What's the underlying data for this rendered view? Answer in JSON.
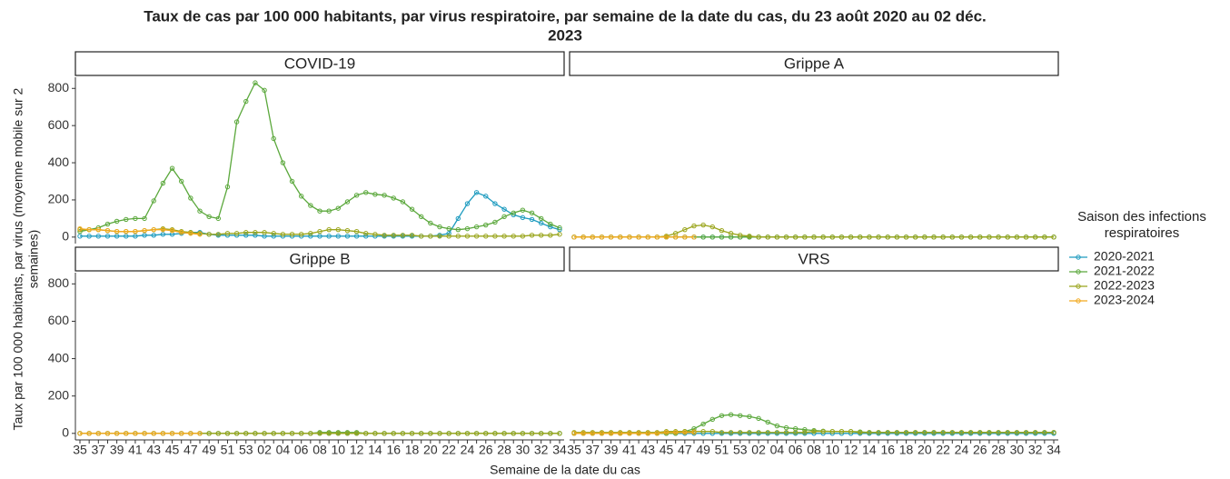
{
  "title": [
    "Taux de cas par 100 000 habitants, par virus respiratoire, par semaine de la date du cas, du 23 août 2020 au 02 déc.",
    "2023"
  ],
  "x_label": "Semaine de la date du cas",
  "y_label": [
    "Taux par 100 000 habitants, par virus (moyenne mobile sur 2",
    "semaines)"
  ],
  "legend_title": [
    "Saison des infections",
    "respiratoires"
  ],
  "chart_data": [
    {
      "type": "line",
      "title": "COVID-19",
      "categories": [
        "35",
        null,
        "37",
        null,
        "39",
        null,
        "41",
        null,
        "43",
        null,
        "45",
        null,
        "47",
        null,
        "49",
        null,
        "51",
        null,
        "53",
        null,
        "02",
        null,
        "04",
        null,
        "06",
        null,
        "08",
        null,
        "10",
        null,
        "12",
        null,
        "14",
        null,
        "16",
        null,
        "18",
        null,
        "20",
        null,
        "22",
        null,
        "24",
        null,
        "26",
        null,
        "28",
        null,
        "30",
        null,
        "32",
        null,
        "34"
      ],
      "ylim": [
        -35,
        860
      ],
      "yticks": [
        0,
        200,
        400,
        600,
        800
      ],
      "series": [
        {
          "name": "2020-2021",
          "color": "#1d9bbf",
          "values": [
            5,
            5,
            5,
            5,
            5,
            5,
            5,
            10,
            10,
            15,
            15,
            20,
            25,
            25,
            15,
            10,
            10,
            10,
            10,
            10,
            5,
            5,
            5,
            5,
            5,
            5,
            5,
            5,
            5,
            5,
            5,
            5,
            5,
            5,
            5,
            5,
            5,
            5,
            5,
            10,
            20,
            100,
            180,
            240,
            220,
            180,
            150,
            120,
            105,
            95,
            75,
            55,
            40
          ]
        },
        {
          "name": "2021-2022",
          "color": "#5ba83c",
          "values": [
            30,
            40,
            50,
            70,
            85,
            95,
            100,
            100,
            195,
            290,
            370,
            300,
            210,
            140,
            110,
            100,
            270,
            620,
            730,
            830,
            790,
            530,
            400,
            300,
            220,
            170,
            140,
            140,
            155,
            190,
            225,
            240,
            230,
            225,
            210,
            190,
            150,
            110,
            75,
            55,
            45,
            40,
            45,
            55,
            65,
            80,
            110,
            130,
            145,
            130,
            100,
            70,
            50
          ]
        },
        {
          "name": "2022-2023",
          "color": "#9aa51c",
          "values": [
            40,
            40,
            40,
            35,
            30,
            30,
            30,
            35,
            40,
            45,
            40,
            30,
            25,
            20,
            15,
            15,
            20,
            20,
            25,
            25,
            25,
            20,
            15,
            15,
            15,
            20,
            30,
            40,
            40,
            35,
            30,
            20,
            15,
            10,
            10,
            10,
            10,
            5,
            5,
            5,
            5,
            5,
            5,
            5,
            5,
            5,
            5,
            5,
            5,
            10,
            10,
            10,
            15
          ]
        },
        {
          "name": "2023-2024",
          "color": "#f2a91e",
          "values": [
            45,
            40,
            40,
            35,
            30,
            30,
            30,
            35,
            40,
            40,
            35,
            25,
            20,
            15,
            null,
            null,
            null,
            null,
            null,
            null,
            null,
            null,
            null,
            null,
            null,
            null,
            null,
            null,
            null,
            null,
            null,
            null,
            null,
            null,
            null,
            null,
            null,
            null,
            null,
            null,
            null,
            null,
            null,
            null,
            null,
            null,
            null,
            null,
            null,
            null,
            null,
            null,
            null
          ]
        }
      ]
    },
    {
      "type": "line",
      "title": "Grippe A",
      "categories": [
        "35",
        null,
        "37",
        null,
        "39",
        null,
        "41",
        null,
        "43",
        null,
        "45",
        null,
        "47",
        null,
        "49",
        null,
        "51",
        null,
        "53",
        null,
        "02",
        null,
        "04",
        null,
        "06",
        null,
        "08",
        null,
        "10",
        null,
        "12",
        null,
        "14",
        null,
        "16",
        null,
        "18",
        null,
        "20",
        null,
        "22",
        null,
        "24",
        null,
        "26",
        null,
        "28",
        null,
        "30",
        null,
        "32",
        null,
        "34"
      ],
      "ylim": [
        -35,
        860
      ],
      "yticks": [
        0,
        200,
        400,
        600,
        800
      ],
      "series": [
        {
          "name": "2020-2021",
          "color": "#1d9bbf",
          "values": [
            0,
            0,
            0,
            0,
            0,
            0,
            0,
            0,
            0,
            0,
            0,
            0,
            0,
            0,
            0,
            0,
            0,
            0,
            0,
            0,
            0,
            0,
            0,
            0,
            0,
            0,
            0,
            0,
            0,
            0,
            0,
            0,
            0,
            0,
            0,
            0,
            0,
            0,
            0,
            0,
            0,
            0,
            0,
            0,
            0,
            0,
            0,
            0,
            0,
            0,
            0,
            0,
            0
          ]
        },
        {
          "name": "2021-2022",
          "color": "#5ba83c",
          "values": [
            0,
            0,
            0,
            0,
            0,
            0,
            0,
            0,
            0,
            0,
            0,
            0,
            0,
            0,
            0,
            0,
            0,
            0,
            0,
            0,
            0,
            0,
            0,
            0,
            0,
            0,
            0,
            0,
            0,
            0,
            0,
            0,
            0,
            0,
            0,
            0,
            0,
            0,
            0,
            0,
            0,
            0,
            0,
            0,
            0,
            0,
            0,
            0,
            0,
            0,
            0,
            0,
            0
          ]
        },
        {
          "name": "2022-2023",
          "color": "#9aa51c",
          "values": [
            0,
            0,
            0,
            0,
            0,
            0,
            0,
            0,
            0,
            0,
            5,
            20,
            40,
            60,
            65,
            55,
            35,
            20,
            10,
            5,
            0,
            0,
            0,
            0,
            0,
            0,
            0,
            0,
            0,
            0,
            0,
            0,
            0,
            0,
            0,
            0,
            0,
            0,
            0,
            0,
            0,
            0,
            0,
            0,
            0,
            0,
            0,
            0,
            0,
            0,
            0,
            0,
            0
          ]
        },
        {
          "name": "2023-2024",
          "color": "#f2a91e",
          "values": [
            0,
            0,
            0,
            0,
            0,
            0,
            0,
            0,
            0,
            0,
            0,
            0,
            0,
            0,
            null,
            null,
            null,
            null,
            null,
            null,
            null,
            null,
            null,
            null,
            null,
            null,
            null,
            null,
            null,
            null,
            null,
            null,
            null,
            null,
            null,
            null,
            null,
            null,
            null,
            null,
            null,
            null,
            null,
            null,
            null,
            null,
            null,
            null,
            null,
            null,
            null,
            null,
            null
          ]
        }
      ]
    },
    {
      "type": "line",
      "title": "Grippe B",
      "categories": [
        "35",
        null,
        "37",
        null,
        "39",
        null,
        "41",
        null,
        "43",
        null,
        "45",
        null,
        "47",
        null,
        "49",
        null,
        "51",
        null,
        "53",
        null,
        "02",
        null,
        "04",
        null,
        "06",
        null,
        "08",
        null,
        "10",
        null,
        "12",
        null,
        "14",
        null,
        "16",
        null,
        "18",
        null,
        "20",
        null,
        "22",
        null,
        "24",
        null,
        "26",
        null,
        "28",
        null,
        "30",
        null,
        "32",
        null,
        "34"
      ],
      "ylim": [
        -35,
        860
      ],
      "yticks": [
        0,
        200,
        400,
        600,
        800
      ],
      "series": [
        {
          "name": "2020-2021",
          "color": "#1d9bbf",
          "values": [
            0,
            0,
            0,
            0,
            0,
            0,
            0,
            0,
            0,
            0,
            0,
            0,
            0,
            0,
            0,
            0,
            0,
            0,
            0,
            0,
            0,
            0,
            0,
            0,
            0,
            0,
            0,
            0,
            0,
            0,
            0,
            0,
            0,
            0,
            0,
            0,
            0,
            0,
            0,
            0,
            0,
            0,
            0,
            0,
            0,
            0,
            0,
            0,
            0,
            0,
            0,
            0,
            0
          ]
        },
        {
          "name": "2021-2022",
          "color": "#5ba83c",
          "values": [
            0,
            0,
            0,
            0,
            0,
            0,
            0,
            0,
            0,
            0,
            0,
            0,
            0,
            0,
            0,
            0,
            0,
            0,
            0,
            0,
            0,
            0,
            0,
            0,
            0,
            0,
            5,
            5,
            5,
            5,
            5,
            0,
            0,
            0,
            0,
            0,
            0,
            0,
            0,
            0,
            0,
            0,
            0,
            0,
            0,
            0,
            0,
            0,
            0,
            0,
            0,
            0,
            0
          ]
        },
        {
          "name": "2022-2023",
          "color": "#9aa51c",
          "values": [
            0,
            0,
            0,
            0,
            0,
            0,
            0,
            0,
            0,
            0,
            0,
            0,
            0,
            0,
            0,
            0,
            0,
            0,
            0,
            0,
            0,
            0,
            0,
            0,
            0,
            0,
            0,
            0,
            0,
            0,
            0,
            0,
            0,
            0,
            0,
            0,
            0,
            0,
            0,
            0,
            0,
            0,
            0,
            0,
            0,
            0,
            0,
            0,
            0,
            0,
            0,
            0,
            0
          ]
        },
        {
          "name": "2023-2024",
          "color": "#f2a91e",
          "values": [
            0,
            0,
            0,
            0,
            0,
            0,
            0,
            0,
            0,
            0,
            0,
            0,
            0,
            0,
            null,
            null,
            null,
            null,
            null,
            null,
            null,
            null,
            null,
            null,
            null,
            null,
            null,
            null,
            null,
            null,
            null,
            null,
            null,
            null,
            null,
            null,
            null,
            null,
            null,
            null,
            null,
            null,
            null,
            null,
            null,
            null,
            null,
            null,
            null,
            null,
            null,
            null,
            null
          ]
        }
      ]
    },
    {
      "type": "line",
      "title": "VRS",
      "categories": [
        "35",
        null,
        "37",
        null,
        "39",
        null,
        "41",
        null,
        "43",
        null,
        "45",
        null,
        "47",
        null,
        "49",
        null,
        "51",
        null,
        "53",
        null,
        "02",
        null,
        "04",
        null,
        "06",
        null,
        "08",
        null,
        "10",
        null,
        "12",
        null,
        "14",
        null,
        "16",
        null,
        "18",
        null,
        "20",
        null,
        "22",
        null,
        "24",
        null,
        "26",
        null,
        "28",
        null,
        "30",
        null,
        "32",
        null,
        "34"
      ],
      "ylim": [
        -35,
        860
      ],
      "yticks": [
        0,
        200,
        400,
        600,
        800
      ],
      "series": [
        {
          "name": "2020-2021",
          "color": "#1d9bbf",
          "values": [
            0,
            0,
            0,
            0,
            0,
            0,
            0,
            0,
            0,
            0,
            0,
            0,
            0,
            0,
            0,
            0,
            0,
            0,
            0,
            0,
            0,
            0,
            0,
            0,
            0,
            0,
            0,
            0,
            0,
            0,
            0,
            0,
            0,
            0,
            0,
            0,
            0,
            0,
            0,
            0,
            0,
            0,
            0,
            0,
            0,
            0,
            0,
            0,
            0,
            0,
            0,
            0,
            0
          ]
        },
        {
          "name": "2021-2022",
          "color": "#5ba83c",
          "values": [
            0,
            0,
            0,
            0,
            0,
            0,
            0,
            0,
            0,
            0,
            0,
            0,
            10,
            25,
            50,
            75,
            95,
            100,
            95,
            90,
            80,
            60,
            40,
            30,
            25,
            20,
            15,
            12,
            10,
            10,
            10,
            8,
            5,
            5,
            5,
            5,
            5,
            5,
            5,
            5,
            5,
            5,
            5,
            5,
            5,
            5,
            5,
            5,
            5,
            5,
            5,
            5,
            5
          ]
        },
        {
          "name": "2022-2023",
          "color": "#9aa51c",
          "values": [
            5,
            5,
            5,
            5,
            5,
            5,
            5,
            5,
            5,
            5,
            10,
            10,
            10,
            10,
            10,
            10,
            5,
            5,
            5,
            5,
            5,
            5,
            5,
            5,
            5,
            5,
            10,
            10,
            10,
            10,
            10,
            5,
            5,
            5,
            5,
            5,
            5,
            5,
            5,
            5,
            5,
            5,
            5,
            5,
            5,
            5,
            5,
            5,
            5,
            5,
            5,
            5,
            5
          ]
        },
        {
          "name": "2023-2024",
          "color": "#f2a91e",
          "values": [
            0,
            0,
            0,
            0,
            0,
            0,
            0,
            0,
            0,
            0,
            5,
            5,
            5,
            5,
            null,
            null,
            null,
            null,
            null,
            null,
            null,
            null,
            null,
            null,
            null,
            null,
            null,
            null,
            null,
            null,
            null,
            null,
            null,
            null,
            null,
            null,
            null,
            null,
            null,
            null,
            null,
            null,
            null,
            null,
            null,
            null,
            null,
            null,
            null,
            null,
            null,
            null,
            null
          ]
        }
      ]
    }
  ]
}
